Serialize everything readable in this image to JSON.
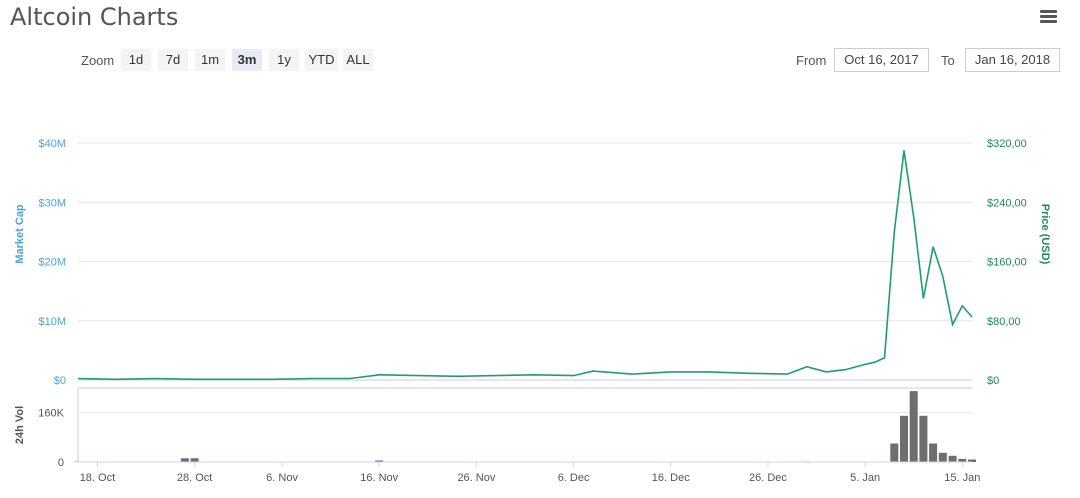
{
  "header": {
    "title": "Altcoin Charts",
    "menu_icon": "hamburger-menu-icon"
  },
  "controls": {
    "zoom_label": "Zoom",
    "zoom_buttons": [
      "1d",
      "7d",
      "1m",
      "3m",
      "1y",
      "YTD",
      "ALL"
    ],
    "active_zoom": "3m",
    "from_label": "From",
    "from_value": "Oct 16, 2017",
    "to_label": "To",
    "to_value": "Jan 16, 2018"
  },
  "colors": {
    "market_cap_axis": "#4aa3df",
    "price_line": "#1e9e6f",
    "price_axis": "#1e8a5f",
    "volume": "#6e6e6e",
    "grid": "#e6e6e6"
  },
  "chart_data": {
    "type": "line",
    "left_axis": {
      "title": "Market Cap",
      "ticks": [
        "$0",
        "$10M",
        "$20M",
        "$30M",
        "$40M"
      ],
      "ylim": [
        0,
        40000000
      ]
    },
    "right_axis": {
      "title": "Price (USD)",
      "ticks": [
        "$0",
        "$80,00",
        "$160,00",
        "$240,00",
        "$320,00"
      ],
      "ylim": [
        0,
        320
      ]
    },
    "volume_axis": {
      "title": "24h Vol",
      "ticks": [
        "0",
        "160K"
      ],
      "ylim": [
        0,
        240000
      ]
    },
    "x_ticks": [
      "18. Oct",
      "28. Oct",
      "6. Nov",
      "16. Nov",
      "26. Nov",
      "6. Dec",
      "16. Dec",
      "26. Dec",
      "5. Jan",
      "15. Jan"
    ],
    "x_range": [
      "2017-10-16",
      "2018-01-16"
    ],
    "grid": true,
    "price_series": {
      "x": [
        "2017-10-16",
        "2017-10-20",
        "2017-10-24",
        "2017-10-28",
        "2017-11-01",
        "2017-11-05",
        "2017-11-09",
        "2017-11-13",
        "2017-11-16",
        "2017-11-20",
        "2017-11-24",
        "2017-11-28",
        "2017-12-02",
        "2017-12-06",
        "2017-12-08",
        "2017-12-12",
        "2017-12-16",
        "2017-12-20",
        "2017-12-24",
        "2017-12-28",
        "2017-12-30",
        "2018-01-01",
        "2018-01-03",
        "2018-01-05",
        "2018-01-06",
        "2018-01-07",
        "2018-01-08",
        "2018-01-09",
        "2018-01-10",
        "2018-01-11",
        "2018-01-12",
        "2018-01-13",
        "2018-01-14",
        "2018-01-15",
        "2018-01-16"
      ],
      "values": [
        2,
        1,
        2,
        1,
        1,
        1,
        2,
        2,
        7,
        6,
        5,
        6,
        7,
        6,
        12,
        8,
        11,
        11,
        9,
        8,
        18,
        11,
        14,
        21,
        24,
        30,
        200,
        310,
        220,
        110,
        180,
        140,
        75,
        100,
        85
      ]
    },
    "volume_series": {
      "x": [
        "2017-10-16",
        "2017-10-27",
        "2017-10-28",
        "2017-11-16",
        "2017-12-30",
        "2018-01-07",
        "2018-01-08",
        "2018-01-09",
        "2018-01-10",
        "2018-01-11",
        "2018-01-12",
        "2018-01-13",
        "2018-01-14",
        "2018-01-15",
        "2018-01-16"
      ],
      "values": [
        1000,
        12000,
        12000,
        5000,
        2000,
        1000,
        60000,
        150000,
        230000,
        150000,
        60000,
        30000,
        20000,
        10000,
        8000
      ]
    }
  }
}
